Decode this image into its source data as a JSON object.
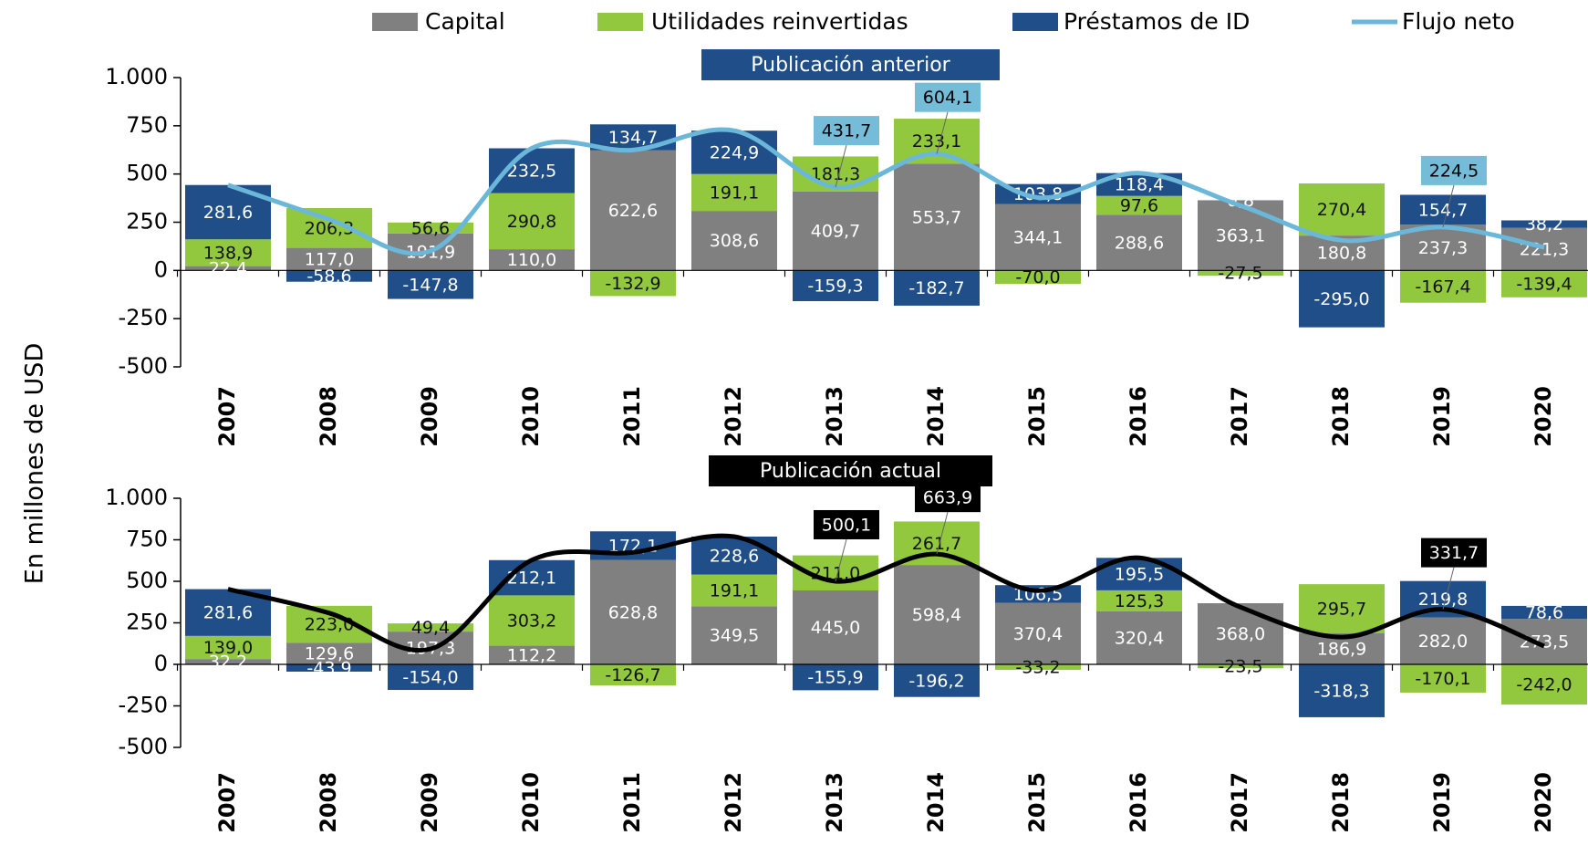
{
  "legend_position": "top",
  "y_label": "En millones de USD",
  "chart_data": [
    {
      "type": "bar",
      "stacked": true,
      "title": "Publicación anterior",
      "categories": [
        "2007",
        "2008",
        "2009",
        "2010",
        "2011",
        "2012",
        "2013",
        "2014",
        "2015",
        "2016",
        "2017",
        "2018",
        "2019",
        "2020"
      ],
      "ylim": [
        -500,
        1000
      ],
      "yticks": [
        {
          "value": 1000,
          "label": "1.000"
        },
        750,
        500,
        250,
        0,
        -250,
        -500
      ],
      "grid": false,
      "series": [
        {
          "name": "Capital",
          "color": "#808080",
          "values": [
            22.4,
            117.0,
            191.9,
            110.0,
            622.6,
            308.6,
            409.7,
            553.7,
            344.1,
            288.6,
            363.1,
            180.8,
            237.3,
            221.3
          ],
          "value_labels": [
            "22,4",
            "117,0",
            "191,9",
            "110,0",
            "622,6",
            "308,6",
            "409,7",
            "553,7",
            "344,1",
            "288,6",
            "363,1",
            "180,8",
            "237,3",
            "221,3"
          ]
        },
        {
          "name": "Utilidades reinvertidas",
          "color": "#92c83e",
          "values": [
            138.9,
            206.3,
            56.6,
            290.8,
            -132.9,
            191.1,
            181.3,
            233.1,
            -70.0,
            97.6,
            -27.5,
            270.4,
            -167.4,
            -139.4
          ],
          "value_labels": [
            "138,9",
            "206,3",
            "56,6",
            "290,8",
            "-132,9",
            "191,1",
            "181,3",
            "233,1",
            "-70,0",
            "97,6",
            "-27,5",
            "270,4",
            "-167,4",
            "-139,4"
          ]
        },
        {
          "name": "Préstamos de ID",
          "color": "#1f4e89",
          "values": [
            281.6,
            -58.6,
            -147.8,
            232.5,
            134.7,
            224.9,
            -159.3,
            -182.7,
            103.8,
            118.4,
            0.8,
            -295.0,
            154.7,
            38.2
          ],
          "value_labels": [
            "281,6",
            "-58,6",
            "-147,8",
            "232,5",
            "134,7",
            "224,9",
            "-159,3",
            "-182,7",
            "103,8",
            "118,4",
            "0,8",
            "-295,0",
            "154,7",
            "38,2"
          ]
        },
        {
          "name": "Flujo neto",
          "type": "line",
          "color": "#6ab7d9",
          "values": [
            442.9,
            264.7,
            100.7,
            633.3,
            624.4,
            724.6,
            431.7,
            604.1,
            377.9,
            504.6,
            336.4,
            156.2,
            224.5,
            120.1
          ],
          "value_labels": [
            null,
            null,
            null,
            null,
            null,
            null,
            "431,7",
            "604,1",
            null,
            null,
            null,
            null,
            "224,5",
            null
          ]
        }
      ]
    },
    {
      "type": "bar",
      "stacked": true,
      "title": "Publicación actual",
      "categories": [
        "2007",
        "2008",
        "2009",
        "2010",
        "2011",
        "2012",
        "2013",
        "2014",
        "2015",
        "2016",
        "2017",
        "2018",
        "2019",
        "2020"
      ],
      "ylim": [
        -500,
        1000
      ],
      "yticks": [
        {
          "value": 1000,
          "label": "1.000"
        },
        750,
        500,
        250,
        0,
        -250,
        -500
      ],
      "grid": false,
      "series": [
        {
          "name": "Capital",
          "color": "#808080",
          "values": [
            32.2,
            129.6,
            197.3,
            112.2,
            628.8,
            349.5,
            445.0,
            598.4,
            370.4,
            320.4,
            368.0,
            186.9,
            282.0,
            273.5
          ],
          "value_labels": [
            "32,2",
            "129,6",
            "197,3",
            "112,2",
            "628,8",
            "349,5",
            "445,0",
            "598,4",
            "370,4",
            "320,4",
            "368,0",
            "186,9",
            "282,0",
            "273,5"
          ]
        },
        {
          "name": "Utilidades reinvertidas",
          "color": "#92c83e",
          "values": [
            139.0,
            223.0,
            49.4,
            303.2,
            -126.7,
            191.1,
            211.0,
            261.7,
            -33.2,
            125.3,
            -23.5,
            295.7,
            -170.1,
            -242.0
          ],
          "value_labels": [
            "139,0",
            "223,0",
            "49,4",
            "303,2",
            "-126,7",
            "191,1",
            "211,0",
            "261,7",
            "-33,2",
            "125,3",
            "-23,5",
            "295,7",
            "-170,1",
            "-242,0"
          ]
        },
        {
          "name": "Préstamos de ID",
          "color": "#1f4e89",
          "values": [
            281.6,
            -43.9,
            -154.0,
            212.1,
            172.1,
            228.6,
            -155.9,
            -196.2,
            106.5,
            195.5,
            0,
            -318.3,
            219.8,
            78.6
          ],
          "value_labels": [
            "281,6",
            "-43,9",
            "-154,0",
            "212,1",
            "172,1",
            "228,6",
            "-155,9",
            "-196,2",
            "106,5",
            "195,5",
            null,
            "-318,3",
            "219,8",
            "78,6"
          ]
        },
        {
          "name": "Flujo neto",
          "type": "line",
          "color": "#000000",
          "values": [
            452.8,
            308.7,
            92.7,
            627.5,
            674.2,
            769.2,
            500.1,
            663.9,
            443.7,
            641.2,
            344.5,
            164.3,
            331.7,
            110.1
          ],
          "value_labels": [
            null,
            null,
            null,
            null,
            null,
            null,
            "500,1",
            "663,9",
            null,
            null,
            null,
            null,
            "331,7",
            null
          ]
        }
      ]
    }
  ]
}
